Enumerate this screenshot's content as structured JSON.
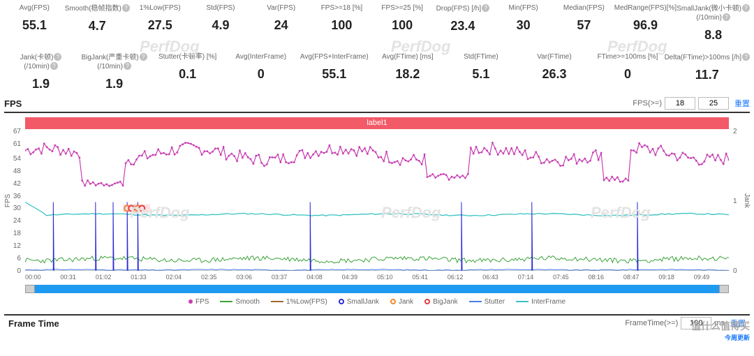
{
  "metrics_row1": [
    {
      "label": "Avg(FPS)",
      "value": "55.1",
      "help": false
    },
    {
      "label": "Smooth(稳帧指数)",
      "value": "4.7",
      "help": true
    },
    {
      "label": "1%Low(FPS)",
      "value": "27.5",
      "help": false
    },
    {
      "label": "Std(FPS)",
      "value": "4.9",
      "help": false
    },
    {
      "label": "Var(FPS)",
      "value": "24",
      "help": false
    },
    {
      "label": "FPS>=18 [%]",
      "value": "100",
      "help": false
    },
    {
      "label": "FPS>=25 [%]",
      "value": "100",
      "help": false
    },
    {
      "label": "Drop(FPS) [/h]",
      "value": "23.4",
      "help": true
    },
    {
      "label": "Min(FPS)",
      "value": "30",
      "help": false
    },
    {
      "label": "Median(FPS)",
      "value": "57",
      "help": false
    },
    {
      "label": "MedRange(FPS)[%]",
      "value": "96.9",
      "help": false
    },
    {
      "label": "SmallJank(微小卡顿)",
      "sub": "(/10min)",
      "value": "8.8",
      "help": true
    }
  ],
  "metrics_row2": [
    {
      "label": "Jank(卡顿)",
      "sub": "(/10min)",
      "value": "1.9",
      "help": true
    },
    {
      "label": "BigJank(严重卡顿)",
      "sub": "(/10min)",
      "value": "1.9",
      "help": true
    },
    {
      "label": "Stutter(卡顿率) [%]",
      "value": "0.1",
      "help": false
    },
    {
      "label": "Avg(InterFrame)",
      "value": "0",
      "help": false
    },
    {
      "label": "Avg(FPS+InterFrame)",
      "value": "55.1",
      "help": false
    },
    {
      "label": "Avg(FTime) [ms]",
      "value": "18.2",
      "help": false
    },
    {
      "label": "Std(FTime)",
      "value": "5.1",
      "help": false
    },
    {
      "label": "Var(FTime)",
      "value": "26.3",
      "help": false
    },
    {
      "label": "FTime>=100ms [%]",
      "value": "0",
      "help": false
    },
    {
      "label": "Delta(FTime)>100ms [/h]",
      "value": "11.7",
      "help": true
    }
  ],
  "fps_section": {
    "title": "FPS",
    "threshold_label": "FPS(>=)",
    "threshold_a": "18",
    "threshold_b": "25",
    "reset": "重置",
    "label_bar": "label1",
    "y_left": {
      "title": "FPS",
      "min": 0,
      "max": 67,
      "ticks": [
        67,
        61,
        54,
        48,
        42,
        36,
        30,
        24,
        18,
        12,
        6,
        0
      ]
    },
    "y_right": {
      "title": "Jank",
      "min": 0,
      "max": 2,
      "ticks": [
        2,
        1,
        0
      ]
    },
    "x_ticks": [
      "00:00",
      "00:31",
      "01:02",
      "01:33",
      "02:04",
      "02:35",
      "03:06",
      "03:37",
      "04:08",
      "04:39",
      "05:10",
      "05:41",
      "06:12",
      "06:43",
      "07:14",
      "07:45",
      "08:16",
      "08:47",
      "09:18",
      "09:49"
    ],
    "legend": [
      {
        "name": "FPS",
        "color": "#c83fb2",
        "kind": "dot"
      },
      {
        "name": "Smooth",
        "color": "#3aa33a",
        "kind": "line"
      },
      {
        "name": "1%Low(FPS)",
        "color": "#a06a2a",
        "kind": "line"
      },
      {
        "name": "SmallJank",
        "color": "#2b2bd6",
        "kind": "ring"
      },
      {
        "name": "Jank",
        "color": "#f08b2d",
        "kind": "ring"
      },
      {
        "name": "BigJank",
        "color": "#e23b3b",
        "kind": "ring"
      },
      {
        "name": "Stutter",
        "color": "#4a7ee6",
        "kind": "line"
      },
      {
        "name": "InterFrame",
        "color": "#37c2c2",
        "kind": "line"
      }
    ],
    "series": {
      "fps": {
        "color": "#c83fb2",
        "base": 56,
        "amp": 7,
        "noise": 3,
        "dips": [
          [
            0.08,
            0.14,
            42
          ],
          [
            0.57,
            0.63,
            45
          ],
          [
            0.82,
            0.86,
            44
          ]
        ]
      },
      "smooth": {
        "color": "#3aa33a",
        "base": 5.5,
        "amp": 1.5,
        "noise": 1.2
      },
      "interframe": {
        "color": "#37c2c2",
        "base": 27,
        "amp": 1,
        "noise": 0.3,
        "start_hi": true
      },
      "stutter": {
        "color": "#4a7ee6",
        "base": 0.5,
        "amp": 0.3,
        "noise": 0.2
      },
      "smalljank_spikes": {
        "color": "#2b2bd6",
        "x": [
          0.04,
          0.1,
          0.125,
          0.145,
          0.16,
          0.405,
          0.62,
          0.72,
          0.87
        ],
        "h": [
          33,
          33,
          33,
          33,
          33,
          33,
          33,
          33,
          33
        ]
      },
      "jank_markers": {
        "color_j": "#f08b2d",
        "color_bj": "#e23b3b",
        "x": [
          0.145,
          0.16
        ]
      }
    }
  },
  "frametime_section": {
    "title": "Frame Time",
    "threshold_label": "FrameTime(>=)",
    "threshold_a": "100",
    "unit": "ms",
    "reset": "重置"
  },
  "colors": {
    "label_bar_bg": "#f25a68",
    "scroll_bg": "#1e9bf0",
    "link": "#1677ff"
  },
  "watermark": "PerfDog",
  "corner_badge": "值什么值得买",
  "corner_sub": "今周更新"
}
